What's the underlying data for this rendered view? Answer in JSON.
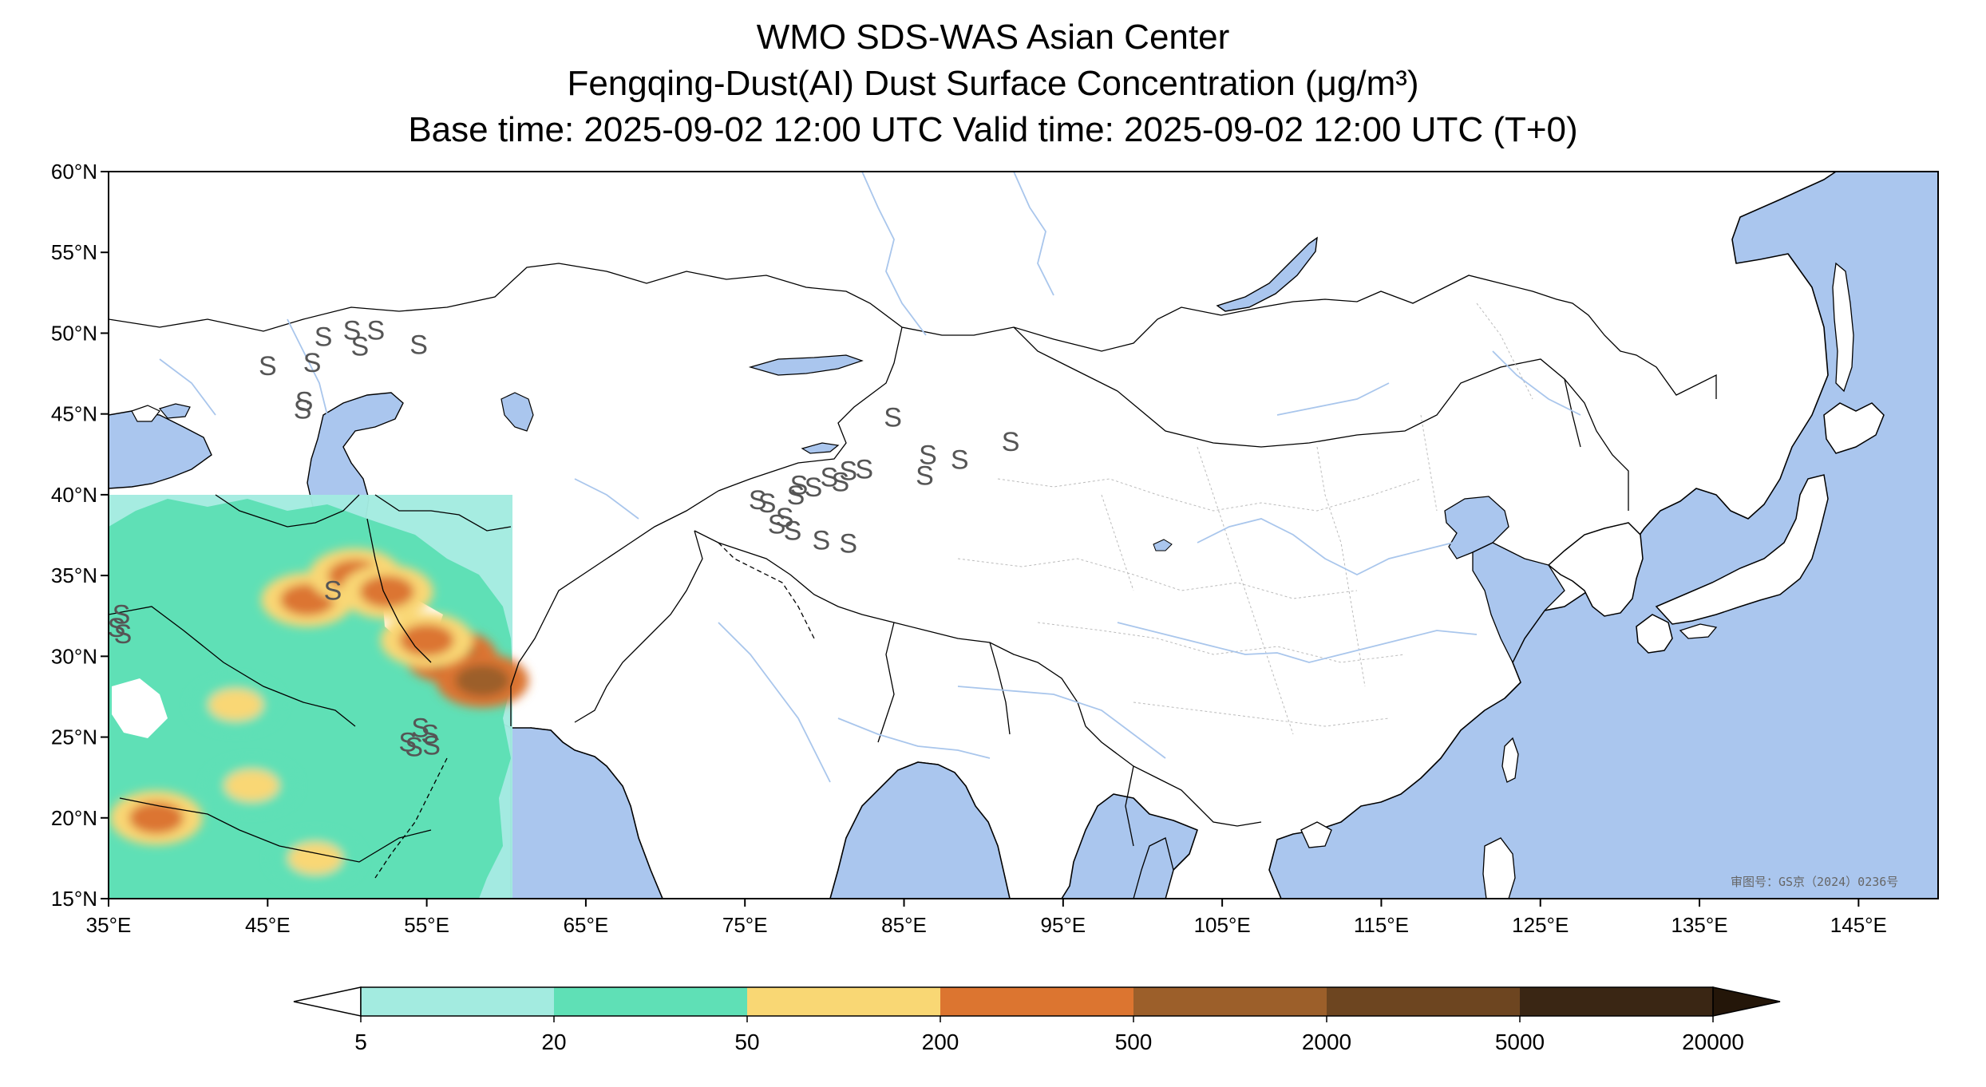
{
  "header": {
    "line1": "WMO SDS-WAS Asian Center",
    "line2": "Fengqing-Dust(AI) Dust Surface Concentration (μg/m³)",
    "line3": "Base time: 2025-09-02 12:00 UTC Valid time: 2025-09-02 12:00 UTC (T+0)"
  },
  "map": {
    "projection": "PlateCarree",
    "lon_range": [
      35,
      150
    ],
    "lat_range": [
      15,
      60
    ],
    "lat_ticks": [
      {
        "value": 60,
        "label": "60°N"
      },
      {
        "value": 55,
        "label": "55°N"
      },
      {
        "value": 50,
        "label": "50°N"
      },
      {
        "value": 45,
        "label": "45°N"
      },
      {
        "value": 40,
        "label": "40°N"
      },
      {
        "value": 35,
        "label": "35°N"
      },
      {
        "value": 30,
        "label": "30°N"
      },
      {
        "value": 25,
        "label": "25°N"
      },
      {
        "value": 20,
        "label": "20°N"
      },
      {
        "value": 15,
        "label": "15°N"
      }
    ],
    "lon_ticks": [
      {
        "value": 35,
        "label": "35°E"
      },
      {
        "value": 45,
        "label": "45°E"
      },
      {
        "value": 55,
        "label": "55°E"
      },
      {
        "value": 65,
        "label": "65°E"
      },
      {
        "value": 75,
        "label": "75°E"
      },
      {
        "value": 85,
        "label": "85°E"
      },
      {
        "value": 95,
        "label": "95°E"
      },
      {
        "value": 105,
        "label": "105°E"
      },
      {
        "value": 115,
        "label": "115°E"
      },
      {
        "value": 125,
        "label": "125°E"
      },
      {
        "value": 135,
        "label": "135°E"
      },
      {
        "value": 145,
        "label": "145°E"
      }
    ],
    "colors": {
      "ocean": "#aac6ee",
      "land": "#ffffff",
      "coast": "#000000",
      "border": "#000000",
      "province": "#bbbbbb",
      "river": "#a9c6ec"
    },
    "dust_field": {
      "extent_lon": [
        35,
        60
      ],
      "extent_lat": [
        15,
        40
      ],
      "hotspots": [
        {
          "lon": 47.5,
          "lat": 33.5,
          "level": 3
        },
        {
          "lon": 50.5,
          "lat": 35.0,
          "level": 3
        },
        {
          "lon": 56.5,
          "lat": 30.0,
          "level": 4
        },
        {
          "lon": 58.5,
          "lat": 28.5,
          "level": 4
        },
        {
          "lon": 44.0,
          "lat": 22.0,
          "level": 2
        },
        {
          "lon": 38.0,
          "lat": 20.0,
          "level": 3
        },
        {
          "lon": 52.5,
          "lat": 34.0,
          "level": 3
        },
        {
          "lon": 55.0,
          "lat": 31.0,
          "level": 3
        },
        {
          "lon": 48.0,
          "lat": 17.5,
          "level": 2
        },
        {
          "lon": 43.0,
          "lat": 27.0,
          "level": 2
        }
      ]
    },
    "dust_obs_symbol": "S",
    "dust_obs_sites": [
      {
        "lon": 45.0,
        "lat": 48.0
      },
      {
        "lon": 48.5,
        "lat": 49.8
      },
      {
        "lon": 50.3,
        "lat": 50.2
      },
      {
        "lon": 51.8,
        "lat": 50.2
      },
      {
        "lon": 50.8,
        "lat": 49.2
      },
      {
        "lon": 54.5,
        "lat": 49.3
      },
      {
        "lon": 47.8,
        "lat": 48.2
      },
      {
        "lon": 47.3,
        "lat": 45.8
      },
      {
        "lon": 47.2,
        "lat": 45.3
      },
      {
        "lon": 84.3,
        "lat": 44.8
      },
      {
        "lon": 86.5,
        "lat": 42.5
      },
      {
        "lon": 88.5,
        "lat": 42.2
      },
      {
        "lon": 91.7,
        "lat": 43.3
      },
      {
        "lon": 86.3,
        "lat": 41.2
      },
      {
        "lon": 81.5,
        "lat": 41.5
      },
      {
        "lon": 82.5,
        "lat": 41.6
      },
      {
        "lon": 80.3,
        "lat": 41.1
      },
      {
        "lon": 81.0,
        "lat": 40.8
      },
      {
        "lon": 79.3,
        "lat": 40.5
      },
      {
        "lon": 78.4,
        "lat": 40.6
      },
      {
        "lon": 78.2,
        "lat": 40.0
      },
      {
        "lon": 75.8,
        "lat": 39.7
      },
      {
        "lon": 76.4,
        "lat": 39.5
      },
      {
        "lon": 77.5,
        "lat": 38.6
      },
      {
        "lon": 78.0,
        "lat": 37.8
      },
      {
        "lon": 79.8,
        "lat": 37.2
      },
      {
        "lon": 81.5,
        "lat": 37.0
      },
      {
        "lon": 77.0,
        "lat": 38.2
      },
      {
        "lon": 49.1,
        "lat": 34.1
      },
      {
        "lon": 35.8,
        "lat": 32.6
      },
      {
        "lon": 35.5,
        "lat": 31.8
      },
      {
        "lon": 35.9,
        "lat": 31.4
      },
      {
        "lon": 54.6,
        "lat": 25.6
      },
      {
        "lon": 55.2,
        "lat": 25.2
      },
      {
        "lon": 53.8,
        "lat": 24.7
      },
      {
        "lon": 55.3,
        "lat": 24.5
      },
      {
        "lon": 54.2,
        "lat": 24.4
      }
    ],
    "approval_text": "审图号：GS京（2024）0236号"
  },
  "colorbar": {
    "levels": [
      "5",
      "20",
      "50",
      "200",
      "500",
      "2000",
      "5000",
      "20000"
    ],
    "colors": [
      "#a3ebe0",
      "#5fe0b6",
      "#f9d774",
      "#dc7530",
      "#9c5f2a",
      "#6d4520",
      "#3a2614"
    ],
    "under_color": "#ffffff",
    "over_color": "#241609"
  }
}
